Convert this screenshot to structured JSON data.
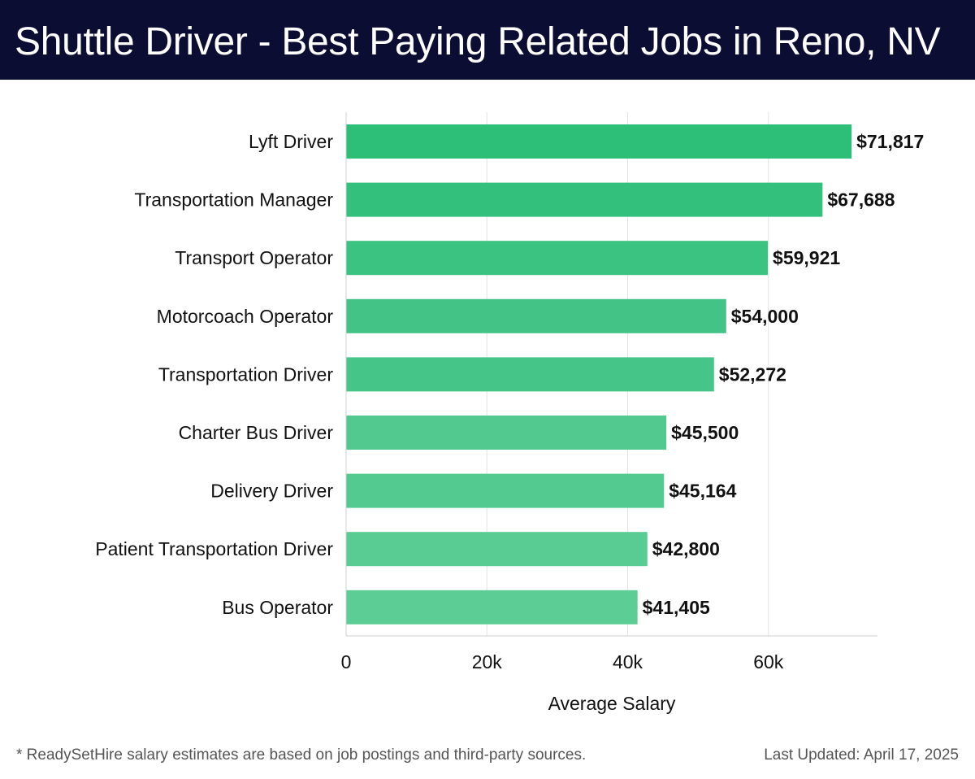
{
  "header": {
    "title": "Shuttle Driver - Best Paying Related Jobs in Reno, NV"
  },
  "footer": {
    "note": "* ReadySetHire salary estimates are based on job postings and third-party sources.",
    "updated": "Last Updated: April 17, 2025"
  },
  "chart_data": {
    "type": "bar",
    "orientation": "horizontal",
    "categories": [
      "Lyft Driver",
      "Transportation Manager",
      "Transport Operator",
      "Motorcoach Operator",
      "Transportation Driver",
      "Charter Bus Driver",
      "Delivery Driver",
      "Patient Transportation Driver",
      "Bus Operator"
    ],
    "values": [
      71817,
      67688,
      59921,
      54000,
      52272,
      45500,
      45164,
      42800,
      41405
    ],
    "value_labels": [
      "$71,817",
      "$67,688",
      "$59,921",
      "$54,000",
      "$52,272",
      "$45,500",
      "$45,164",
      "$42,800",
      "$41,405"
    ],
    "xlabel": "Average Salary",
    "ylabel": "",
    "xlim": [
      0,
      75500
    ],
    "xticks": [
      0,
      20000,
      40000,
      60000
    ],
    "xtick_labels": [
      "0",
      "20k",
      "40k",
      "60k"
    ],
    "grid": "vertical",
    "bar_colors": [
      "#2dbe78",
      "#33c07c",
      "#3ac381",
      "#43c486",
      "#45c587",
      "#51c98f",
      "#52ca90",
      "#58cc93",
      "#5bcd95"
    ]
  }
}
